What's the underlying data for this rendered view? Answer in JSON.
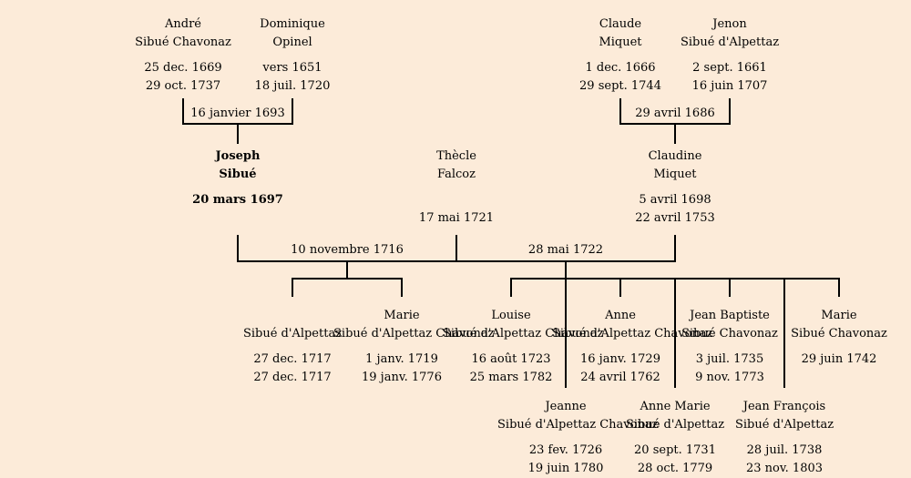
{
  "people": {
    "andre": {
      "given": "André",
      "surname": "Sibué Chavonaz",
      "birth": "25 dec. 1669",
      "death": "29 oct. 1737"
    },
    "dominique": {
      "given": "Dominique",
      "surname": "Opinel",
      "birth": "vers 1651",
      "death": "18 juil. 1720"
    },
    "claude": {
      "given": "Claude",
      "surname": "Miquet",
      "birth": "1 dec. 1666",
      "death": "29 sept. 1744"
    },
    "jenon": {
      "given": "Jenon",
      "surname": "Sibué d'Alpettaz",
      "birth": "2 sept. 1661",
      "death": "16 juin 1707"
    },
    "joseph": {
      "given": "Joseph",
      "surname": "Sibué",
      "birth": "20 mars 1697",
      "death": ""
    },
    "thecle": {
      "given": "Thècle",
      "surname": "Falcoz",
      "birth": "",
      "death": "17 mai 1721"
    },
    "claudine": {
      "given": "Claudine",
      "surname": "Miquet",
      "birth": "5 avril 1698",
      "death": "22 avril 1753"
    },
    "child1": {
      "given": "",
      "surname": "Sibué d'Alpettaz",
      "birth": "27 dec. 1717",
      "death": "27 dec. 1717"
    },
    "marie1": {
      "given": "Marie",
      "surname": "Sibué d'Alpettaz Chavonaz",
      "birth": "1 janv. 1719",
      "death": "19 janv. 1776"
    },
    "louise": {
      "given": "Louise",
      "surname": "Sibué d'Alpettaz Chavonaz",
      "birth": "16 août 1723",
      "death": "25 mars 1782"
    },
    "jeanne": {
      "given": "Jeanne",
      "surname": "Sibué d'Alpettaz Chavonaz",
      "birth": "23 fev. 1726",
      "death": "19 juin 1780"
    },
    "anne": {
      "given": "Anne",
      "surname": "Sibué d'Alpettaz Chavonaz",
      "birth": "16 janv. 1729",
      "death": "24 avril 1762"
    },
    "annemarie": {
      "given": "Anne Marie",
      "surname": "Sibué d'Alpettaz",
      "birth": "20 sept. 1731",
      "death": "28 oct. 1779"
    },
    "jeanbaptiste": {
      "given": "Jean Baptiste",
      "surname": "Sibué Chavonaz",
      "birth": "3 juil. 1735",
      "death": "9 nov. 1773"
    },
    "jeanfrancois": {
      "given": "Jean François",
      "surname": "Sibué d'Alpettaz",
      "birth": "28 juil. 1738",
      "death": "23 nov. 1803"
    },
    "marie2": {
      "given": "Marie",
      "surname": "Sibué Chavonaz",
      "birth": "29 juin 1742",
      "death": ""
    }
  },
  "marriages": {
    "andre_dominique": "16 janvier 1693",
    "claude_jenon": "29 avril 1686",
    "joseph_thecle": "10 novembre 1716",
    "joseph_claudine": "28 mai 1722"
  }
}
